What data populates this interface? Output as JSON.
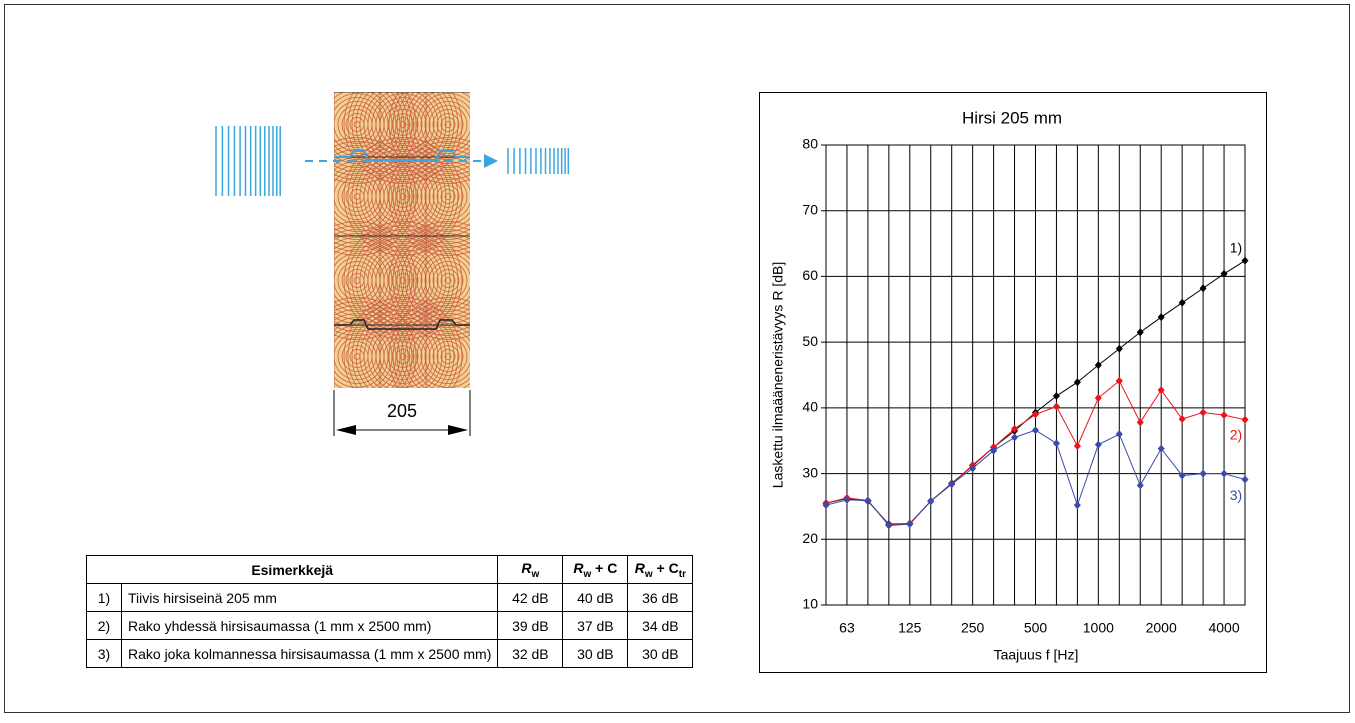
{
  "diagram": {
    "dimension": "205"
  },
  "table": {
    "header": [
      "Esimerkkejä",
      {
        "symbol": "R",
        "subscript": "w"
      },
      {
        "symbol": "R",
        "subscript": "w",
        "tail": " + C"
      },
      {
        "symbol": "R",
        "subscript": "w",
        "tail": " + C",
        "tail_subscript": "tr"
      }
    ],
    "rows": [
      [
        "1)",
        "Tiivis hirsiseinä 205 mm",
        "42 dB",
        "40 dB",
        "36 dB"
      ],
      [
        "2)",
        "Rako yhdessä hirsisaumassa (1 mm x 2500 mm)",
        "39 dB",
        "37 dB",
        "34 dB"
      ],
      [
        "3)",
        "Rako joka kolmannessa hirsisaumassa (1 mm x 2500 mm)",
        "32 dB",
        "30 dB",
        "30 dB"
      ]
    ]
  },
  "chart_data": {
    "type": "line",
    "title": "Hirsi 205 mm",
    "y_label": "Laskettu ilmaääneneristävyys R [dB]",
    "x_label": "Taajuus f [Hz]",
    "categories": [
      null,
      "63",
      null,
      null,
      "125",
      null,
      null,
      "250",
      null,
      null,
      "500",
      null,
      null,
      "1000",
      null,
      null,
      "2000",
      null,
      null,
      "4000",
      null
    ],
    "ylim": [
      10,
      80
    ],
    "yticks": [
      10,
      20,
      30,
      40,
      50,
      60,
      70,
      80
    ],
    "grid": true,
    "series": [
      {
        "name": "1)",
        "color": "#000000",
        "values": [
          25.5,
          26.2,
          25.8,
          22.3,
          22.4,
          25.8,
          28.5,
          31.2,
          34.0,
          36.5,
          39.3,
          41.8,
          43.9,
          46.5,
          49.0,
          51.5,
          53.8,
          56.0,
          58.2,
          60.4,
          62.4
        ]
      },
      {
        "name": "2)",
        "color": "#e8141c",
        "values": [
          25.5,
          26.3,
          25.9,
          22.2,
          22.4,
          25.8,
          28.4,
          31.3,
          34.0,
          36.8,
          39.0,
          40.2,
          34.2,
          41.5,
          44.1,
          37.8,
          42.7,
          38.3,
          39.3,
          38.9,
          38.2
        ]
      },
      {
        "name": "3)",
        "color": "#3c4aa8",
        "values": [
          25.2,
          26.0,
          25.9,
          22.1,
          22.3,
          25.8,
          28.4,
          30.8,
          33.5,
          35.5,
          36.6,
          34.6,
          25.2,
          34.4,
          36.0,
          28.2,
          33.8,
          29.7,
          30.0,
          30.0,
          29.1
        ]
      }
    ]
  }
}
